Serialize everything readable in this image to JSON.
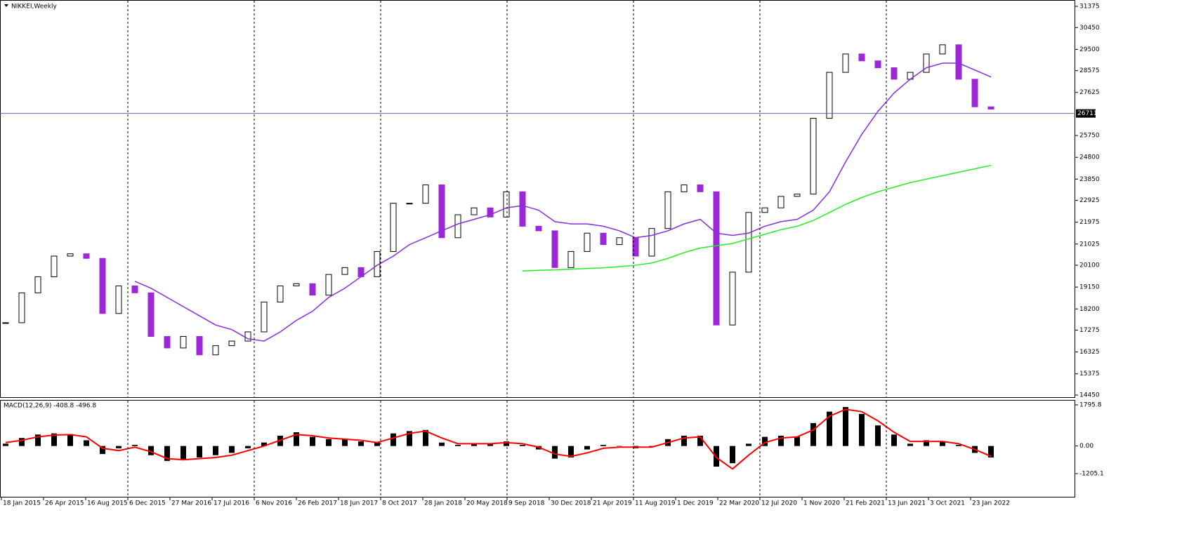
{
  "chart_data": [
    {
      "type": "candlestick",
      "title": "NIKKEI,Weekly",
      "close": [
        17600,
        18900,
        19600,
        20500,
        20600,
        20400,
        18000,
        19200,
        18900,
        17000,
        16500,
        17000,
        16200,
        16600,
        16800,
        17200,
        18500,
        19200,
        19300,
        18800,
        19700,
        20000,
        19600,
        20700,
        22800,
        22800,
        23600,
        21300,
        22300,
        22600,
        22200,
        23300,
        21800,
        21600,
        20000,
        20700,
        21500,
        21000,
        21300,
        20500,
        21700,
        23300,
        23600,
        23300,
        17500,
        19800,
        22400,
        22600,
        23100,
        23200,
        26500,
        28500,
        29300,
        29000,
        28700,
        28200,
        28500,
        29300,
        29700,
        28200,
        27000,
        26900
      ],
      "up_color": "#000000",
      "down_color": "#9c27d6",
      "series": [
        {
          "color": "#8a2be2",
          "values": [
            null,
            null,
            null,
            null,
            null,
            null,
            null,
            null,
            19400,
            19100,
            18700,
            18300,
            17900,
            17500,
            17300,
            16900,
            16800,
            17200,
            17700,
            18100,
            18700,
            19100,
            19600,
            20100,
            20500,
            21000,
            21300,
            21600,
            21900,
            22100,
            22300,
            22600,
            22700,
            22500,
            22000,
            21900,
            21900,
            21800,
            21600,
            21300,
            21400,
            21600,
            21900,
            22100,
            21500,
            21400,
            21500,
            21800,
            22000,
            22100,
            22500,
            23300,
            24600,
            25800,
            26800,
            27600,
            28200,
            28700,
            28900,
            28900,
            28600,
            28300
          ]
        },
        {
          "color": "#22ee22",
          "values": [
            null,
            null,
            null,
            null,
            null,
            null,
            null,
            null,
            null,
            null,
            null,
            null,
            null,
            null,
            null,
            null,
            null,
            null,
            null,
            null,
            null,
            null,
            null,
            null,
            null,
            null,
            null,
            null,
            null,
            null,
            null,
            null,
            19850,
            19880,
            19900,
            19930,
            19960,
            19990,
            20040,
            20100,
            20200,
            20400,
            20650,
            20850,
            20950,
            21050,
            21250,
            21450,
            21650,
            21800,
            22050,
            22400,
            22750,
            23050,
            23300,
            23500,
            23700,
            23850,
            24000,
            24150,
            24300,
            24450
          ]
        }
      ],
      "last_price": 26711,
      "ylim": [
        14450,
        31375
      ],
      "yticks": [
        31375,
        30450,
        29500,
        28575,
        27625,
        25750,
        24800,
        23850,
        22925,
        21975,
        21025,
        20100,
        19150,
        18200,
        17275,
        16325,
        15375,
        14450
      ]
    },
    {
      "type": "macd",
      "title": "MACD(12,26,9) -408.8 -496.8",
      "histogram": [
        100,
        350,
        500,
        550,
        520,
        250,
        -350,
        -100,
        50,
        -400,
        -650,
        -600,
        -500,
        -400,
        -300,
        -100,
        150,
        450,
        600,
        400,
        300,
        300,
        200,
        150,
        550,
        650,
        700,
        150,
        50,
        100,
        100,
        200,
        50,
        -150,
        -550,
        -500,
        -150,
        50,
        0,
        -100,
        -50,
        300,
        450,
        450,
        -900,
        -750,
        100,
        400,
        450,
        400,
        1000,
        1500,
        1700,
        1400,
        900,
        500,
        100,
        250,
        200,
        50,
        -300,
        -500
      ],
      "signal": [
        150,
        250,
        400,
        480,
        500,
        400,
        -100,
        -200,
        -50,
        -250,
        -550,
        -600,
        -550,
        -500,
        -400,
        -200,
        0,
        250,
        500,
        450,
        350,
        300,
        250,
        150,
        350,
        550,
        650,
        350,
        100,
        100,
        100,
        150,
        100,
        -50,
        -350,
        -450,
        -300,
        -100,
        -50,
        -50,
        -50,
        150,
        350,
        400,
        -500,
        -1000,
        -400,
        150,
        350,
        400,
        700,
        1300,
        1600,
        1500,
        1100,
        600,
        200,
        200,
        200,
        100,
        -150,
        -450
      ],
      "histogram_color": "#000000",
      "signal_color": "#ff0000",
      "ylim": [
        -1205.1,
        1795.8
      ],
      "yticks": [
        1795.8,
        {
          "value": 0,
          "label": "0.00"
        },
        -1205.1
      ],
      "x_labels": [
        "18 Jan 2015",
        "26 Apr 2015",
        "16 Aug 2015",
        "6 Dec 2015",
        "27 Mar 2016",
        "17 Jul 2016",
        "6 Nov 2016",
        "26 Feb 2017",
        "18 Jun 2017",
        "8 Oct 2017",
        "28 Jan 2018",
        "20 May 2018",
        "9 Sep 2018",
        "30 Dec 2018",
        "21 Apr 2019",
        "11 Aug 2019",
        "1 Dec 2019",
        "22 Mar 2020",
        "12 Jul 2020",
        "1 Nov 2020",
        "21 Feb 2021",
        "13 Jun 2021",
        "3 Oct 2021",
        "23 Jan 2022"
      ]
    }
  ]
}
